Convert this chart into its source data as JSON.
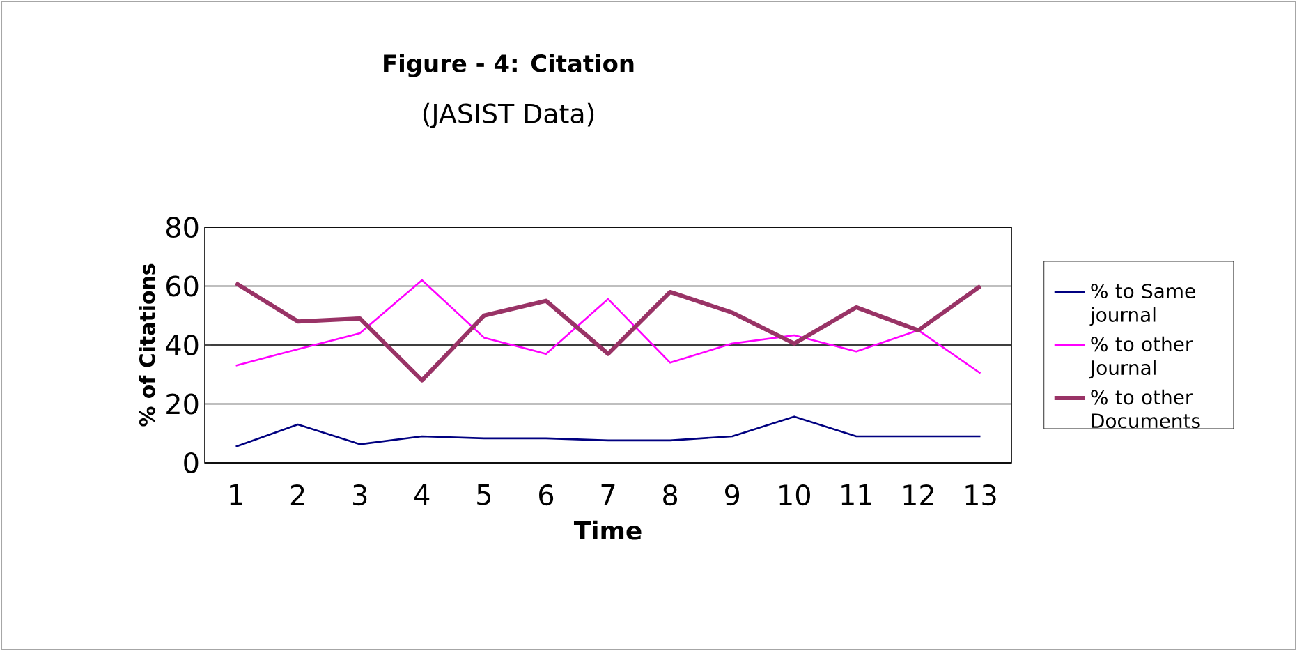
{
  "chart_data": {
    "type": "line",
    "title": "Figure - 4: Citation",
    "subtitle": "(JASIST Data)",
    "xlabel": "Time",
    "ylabel": "% of Citations",
    "categories": [
      "1",
      "2",
      "3",
      "4",
      "5",
      "6",
      "7",
      "8",
      "9",
      "10",
      "11",
      "12",
      "13"
    ],
    "ylim": [
      0,
      80
    ],
    "yticks": [
      0,
      20,
      40,
      60,
      80
    ],
    "grid": "y",
    "legend": "right",
    "marker": "none",
    "series": [
      {
        "name": "% to Same journal",
        "color": "#000080",
        "values": [
          5.5,
          13,
          6.3,
          9,
          8.3,
          8.3,
          7.6,
          7.6,
          9,
          15.7,
          9,
          9,
          9
        ]
      },
      {
        "name": "% to other Journal",
        "color": "#ff00ff",
        "values": [
          33,
          38.6,
          44,
          62,
          42.5,
          37,
          55.6,
          34,
          40.5,
          43.3,
          37.8,
          45,
          30.4
        ]
      },
      {
        "name": "% to other Documents",
        "color": "#993366",
        "values": [
          61,
          48,
          49,
          28,
          50,
          55,
          37,
          58,
          51,
          40.5,
          52.8,
          45,
          60
        ]
      }
    ]
  }
}
